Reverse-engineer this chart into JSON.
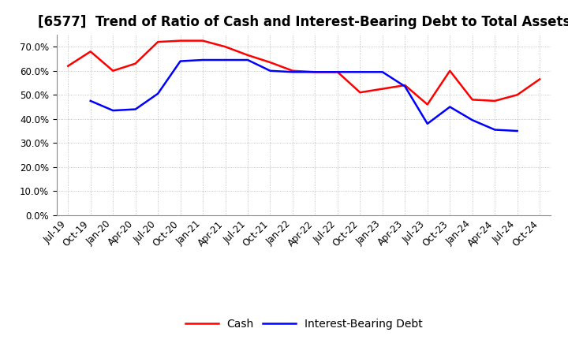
{
  "title": "[6577]  Trend of Ratio of Cash and Interest-Bearing Debt to Total Assets",
  "x_labels": [
    "Jul-19",
    "Oct-19",
    "Jan-20",
    "Apr-20",
    "Jul-20",
    "Oct-20",
    "Jan-21",
    "Apr-21",
    "Jul-21",
    "Oct-21",
    "Jan-22",
    "Apr-22",
    "Jul-22",
    "Oct-22",
    "Jan-23",
    "Apr-23",
    "Jul-23",
    "Oct-23",
    "Jan-24",
    "Apr-24",
    "Jul-24",
    "Oct-24"
  ],
  "cash": [
    0.62,
    0.68,
    0.6,
    0.63,
    0.72,
    0.725,
    0.725,
    0.7,
    0.665,
    0.635,
    0.6,
    0.595,
    0.595,
    0.51,
    0.525,
    0.54,
    0.46,
    0.6,
    0.48,
    0.475,
    0.5,
    0.565
  ],
  "ibd": [
    null,
    0.475,
    0.435,
    0.44,
    0.505,
    0.64,
    0.645,
    0.645,
    0.645,
    0.6,
    0.595,
    0.595,
    0.595,
    0.595,
    0.595,
    0.535,
    0.38,
    0.45,
    0.395,
    0.355,
    0.35,
    null
  ],
  "cash_color": "#ff0000",
  "ibd_color": "#0000ff",
  "background_color": "#ffffff",
  "plot_bg_color": "#ffffff",
  "grid_color": "#aaaaaa",
  "ylim": [
    0.0,
    0.75
  ],
  "yticks": [
    0.0,
    0.1,
    0.2,
    0.3,
    0.4,
    0.5,
    0.6,
    0.7
  ],
  "legend_labels": [
    "Cash",
    "Interest-Bearing Debt"
  ],
  "title_fontsize": 12,
  "tick_fontsize": 8.5,
  "legend_fontsize": 10
}
